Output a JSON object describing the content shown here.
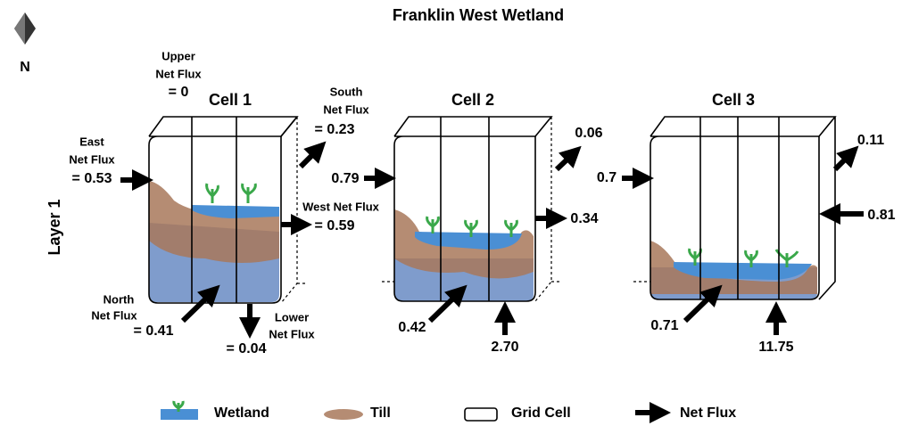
{
  "title": "Franklin West Wetland",
  "north": "N",
  "layer": "Layer 1",
  "cells": [
    {
      "label": "Cell 1",
      "fluxes": [
        [
          "Upper",
          "Net Flux",
          "= 0"
        ],
        [
          "East",
          "Net Flux",
          "= 0.53"
        ],
        [
          "South",
          "Net Flux",
          "= 0.23"
        ],
        [
          "West Net Flux",
          "= 0.59"
        ],
        [
          "North",
          "Net Flux",
          "= 0.41"
        ],
        [
          "Lower",
          "Net Flux",
          "= 0.04"
        ]
      ]
    },
    {
      "label": "Cell 2",
      "fluxes": [
        "0.79",
        "0.06",
        "0.34",
        "0.42",
        "2.70"
      ]
    },
    {
      "label": "Cell 3",
      "fluxes": [
        "0.7",
        "0.11",
        "0.81",
        "0.71",
        "11.75"
      ]
    }
  ],
  "legend": [
    "Wetland",
    "Till",
    "Grid Cell",
    "Net Flux"
  ]
}
